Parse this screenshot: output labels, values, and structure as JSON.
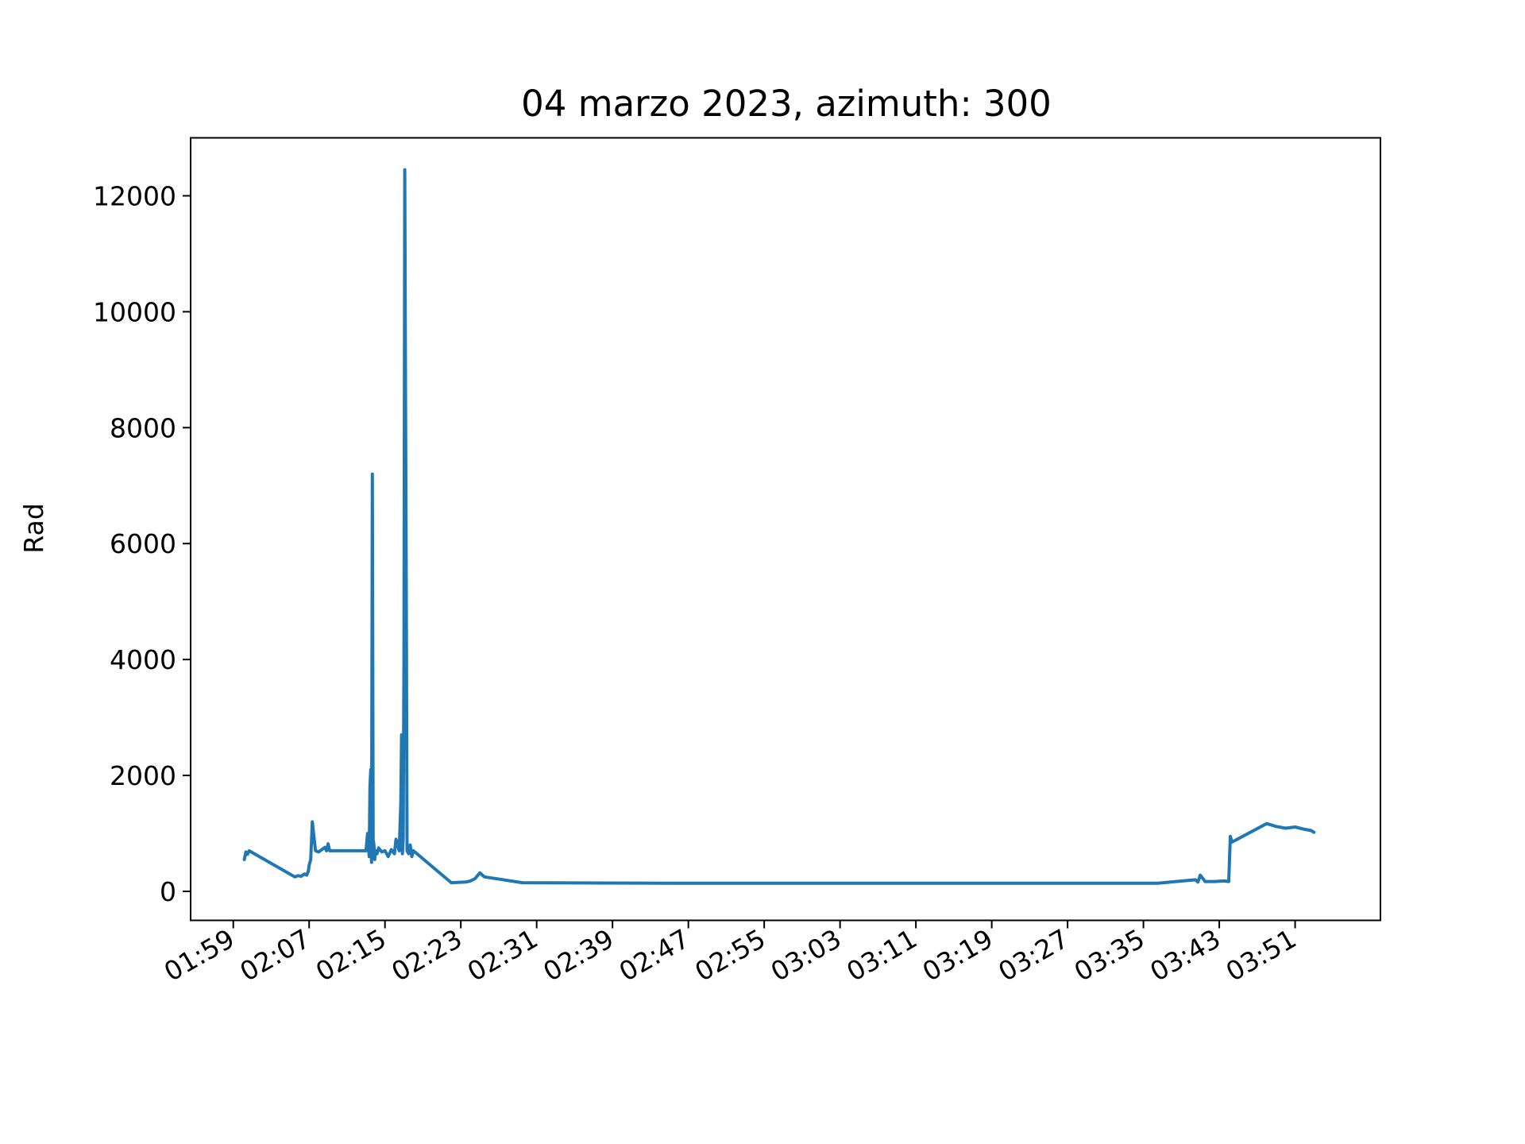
{
  "chart_data": {
    "type": "line",
    "title": "04 marzo 2023, azimuth: 300",
    "xlabel": "",
    "ylabel": "Rad",
    "x_tick_labels": [
      "01:59",
      "02:07",
      "02:15",
      "02:23",
      "02:31",
      "02:39",
      "02:47",
      "02:55",
      "03:03",
      "03:11",
      "03:19",
      "03:27",
      "03:35",
      "03:43",
      "03:51"
    ],
    "y_tick_labels": [
      "0",
      "2000",
      "4000",
      "6000",
      "8000",
      "10000",
      "12000"
    ],
    "x_range": [
      "01:54:30",
      "04:00:00"
    ],
    "ylim": [
      -500,
      13000
    ],
    "grid": false,
    "line_color": "#1f77b4",
    "series": [
      {
        "x": [
          "02:00:10",
          "02:00:20",
          "02:00:30",
          "02:00:40",
          "02:05:30",
          "02:05:50",
          "02:06:10",
          "02:06:30",
          "02:06:45",
          "02:06:55",
          "02:07:00",
          "02:07:10",
          "02:07:20",
          "02:07:40",
          "02:08:00",
          "02:08:20",
          "02:08:40",
          "02:08:50",
          "02:09:00",
          "02:09:10",
          "02:13:00",
          "02:13:10",
          "02:13:20",
          "02:13:25",
          "02:13:30",
          "02:13:35",
          "02:13:40",
          "02:13:45",
          "02:13:50",
          "02:13:55",
          "02:14:00",
          "02:14:10",
          "02:14:20",
          "02:14:40",
          "02:15:00",
          "02:15:20",
          "02:15:40",
          "02:16:00",
          "02:16:10",
          "02:16:20",
          "02:16:30",
          "02:16:40",
          "02:16:45",
          "02:16:50",
          "02:16:55",
          "02:17:00",
          "02:17:05",
          "02:17:10",
          "02:17:15",
          "02:17:20",
          "02:17:30",
          "02:17:40",
          "02:17:50",
          "02:18:00",
          "02:22:00",
          "02:23:30",
          "02:24:00",
          "02:24:30",
          "02:25:00",
          "02:25:30",
          "02:29:30",
          "02:45:00",
          "03:00:00",
          "03:15:00",
          "03:30:00",
          "03:36:30",
          "03:40:30",
          "03:40:45",
          "03:41:00",
          "03:41:30",
          "03:42:30",
          "03:43:30",
          "03:44:00",
          "03:44:10",
          "03:44:20",
          "03:48:00",
          "03:49:00",
          "03:50:00",
          "03:51:00",
          "03:52:00",
          "03:52:40",
          "03:53:00"
        ],
        "y": [
          550,
          680,
          640,
          700,
          250,
          270,
          260,
          300,
          280,
          350,
          450,
          550,
          1200,
          700,
          680,
          720,
          760,
          700,
          820,
          700,
          700,
          1000,
          600,
          1800,
          2100,
          500,
          7200,
          900,
          800,
          550,
          700,
          650,
          750,
          680,
          700,
          600,
          720,
          650,
          900,
          800,
          700,
          1500,
          2700,
          650,
          900,
          4000,
          12450,
          8500,
          5300,
          700,
          650,
          800,
          600,
          700,
          150,
          160,
          180,
          220,
          320,
          250,
          150,
          140,
          140,
          140,
          140,
          140,
          200,
          160,
          280,
          170,
          170,
          180,
          170,
          950,
          850,
          1170,
          1120,
          1090,
          1110,
          1070,
          1050,
          1020
        ]
      }
    ]
  }
}
